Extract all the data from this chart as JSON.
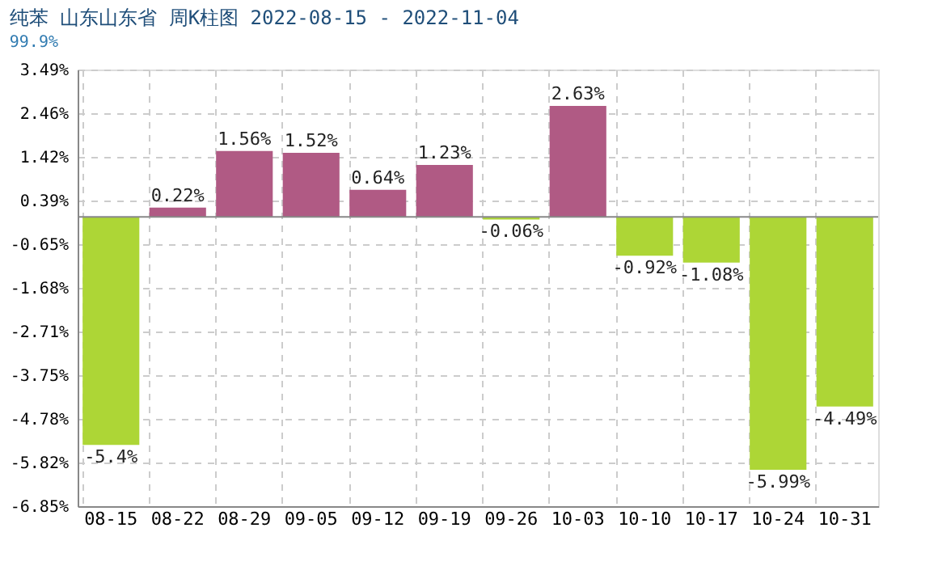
{
  "chart_data": {
    "type": "bar",
    "title": "纯苯 山东山东省 周K柱图 2022-08-15 - 2022-11-04",
    "subtitle": "99.9%",
    "categories": [
      "08-15",
      "08-22",
      "08-29",
      "09-05",
      "09-12",
      "09-19",
      "09-26",
      "10-03",
      "10-10",
      "10-17",
      "10-24",
      "10-31"
    ],
    "values": [
      -5.4,
      0.22,
      1.56,
      1.52,
      0.64,
      1.23,
      -0.06,
      2.63,
      -0.92,
      -1.08,
      -5.99,
      -4.49
    ],
    "value_labels": [
      "-5.4%",
      "0.22%",
      "1.56%",
      "1.52%",
      "0.64%",
      "1.23%",
      "-0.06%",
      "2.63%",
      "-0.92%",
      "-1.08%",
      "-5.99%",
      "-4.49%"
    ],
    "colors": [
      "#add636",
      "#b05a84",
      "#b05a84",
      "#b05a84",
      "#b05a84",
      "#b05a84",
      "#add636",
      "#b05a84",
      "#add636",
      "#add636",
      "#add636",
      "#add636"
    ],
    "ylim": [
      -6.85,
      3.49
    ],
    "yticks": [
      {
        "value": 3.49,
        "label": "3.49%"
      },
      {
        "value": 2.46,
        "label": "2.46%"
      },
      {
        "value": 1.42,
        "label": "1.42%"
      },
      {
        "value": 0.39,
        "label": "0.39%"
      },
      {
        "value": -0.65,
        "label": "-0.65%"
      },
      {
        "value": -1.68,
        "label": "-1.68%"
      },
      {
        "value": -2.71,
        "label": "-2.71%"
      },
      {
        "value": -3.75,
        "label": "-3.75%"
      },
      {
        "value": -4.78,
        "label": "-4.78%"
      },
      {
        "value": -5.82,
        "label": "-5.82%"
      },
      {
        "value": -6.85,
        "label": "-6.85%"
      }
    ],
    "ref_lines": [
      {
        "axis": "y",
        "value": 0,
        "color": "#888888"
      }
    ],
    "grid": true
  }
}
